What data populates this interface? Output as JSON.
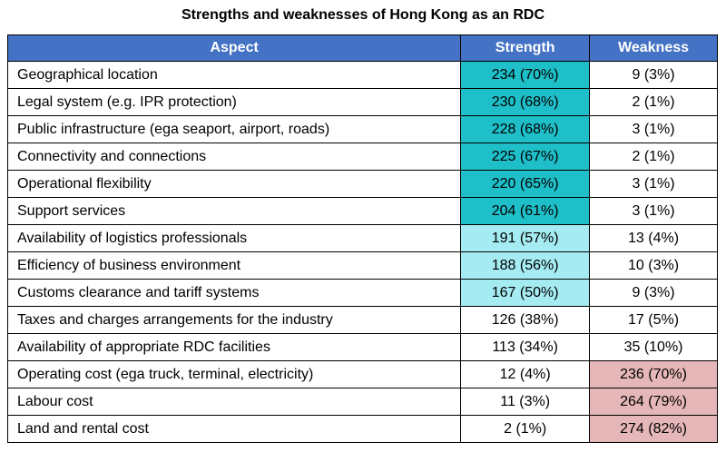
{
  "title": "Strengths and weaknesses of Hong Kong as an RDC",
  "table": {
    "headers": [
      "Aspect",
      "Strength",
      "Weakness"
    ],
    "rows": [
      {
        "aspect": "Geographical location",
        "strength": "234 (70%)",
        "weakness": "9 (3%)"
      },
      {
        "aspect": "Legal system (e.g. IPR protection)",
        "strength": "230 (68%)",
        "weakness": "2 (1%)"
      },
      {
        "aspect": "Public infrastructure (ega seaport, airport, roads)",
        "strength": "228 (68%)",
        "weakness": "3 (1%)"
      },
      {
        "aspect": "Connectivity and connections",
        "strength": "225 (67%)",
        "weakness": "2 (1%)"
      },
      {
        "aspect": "Operational flexibility",
        "strength": "220 (65%)",
        "weakness": "3 (1%)"
      },
      {
        "aspect": "Support services",
        "strength": "204 (61%)",
        "weakness": "3 (1%)"
      },
      {
        "aspect": "Availability of logistics professionals",
        "strength": "191 (57%)",
        "weakness": "13 (4%)"
      },
      {
        "aspect": "Efficiency of business environment",
        "strength": "188 (56%)",
        "weakness": "10 (3%)"
      },
      {
        "aspect": "Customs clearance and tariff systems",
        "strength": "167 (50%)",
        "weakness": "9 (3%)"
      },
      {
        "aspect": "Taxes and charges arrangements for the industry",
        "strength": "126 (38%)",
        "weakness": "17 (5%)"
      },
      {
        "aspect": "Availability of appropriate RDC facilities",
        "strength": "113 (34%)",
        "weakness": "35 (10%)"
      },
      {
        "aspect": "Operating cost (ega truck, terminal, electricity)",
        "strength": "12 (4%)",
        "weakness": "236 (70%)"
      },
      {
        "aspect": "Labour cost",
        "strength": "11 (3%)",
        "weakness": "264 (79%)"
      },
      {
        "aspect": "Land and rental cost",
        "strength": "2 (1%)",
        "weakness": "274 (82%)"
      }
    ]
  },
  "colors": {
    "header_bg": "#4472c4",
    "strength_high": "#1ebfc8",
    "strength_medium": "#a4ecf2",
    "weakness_high": "#e6b7b8"
  }
}
